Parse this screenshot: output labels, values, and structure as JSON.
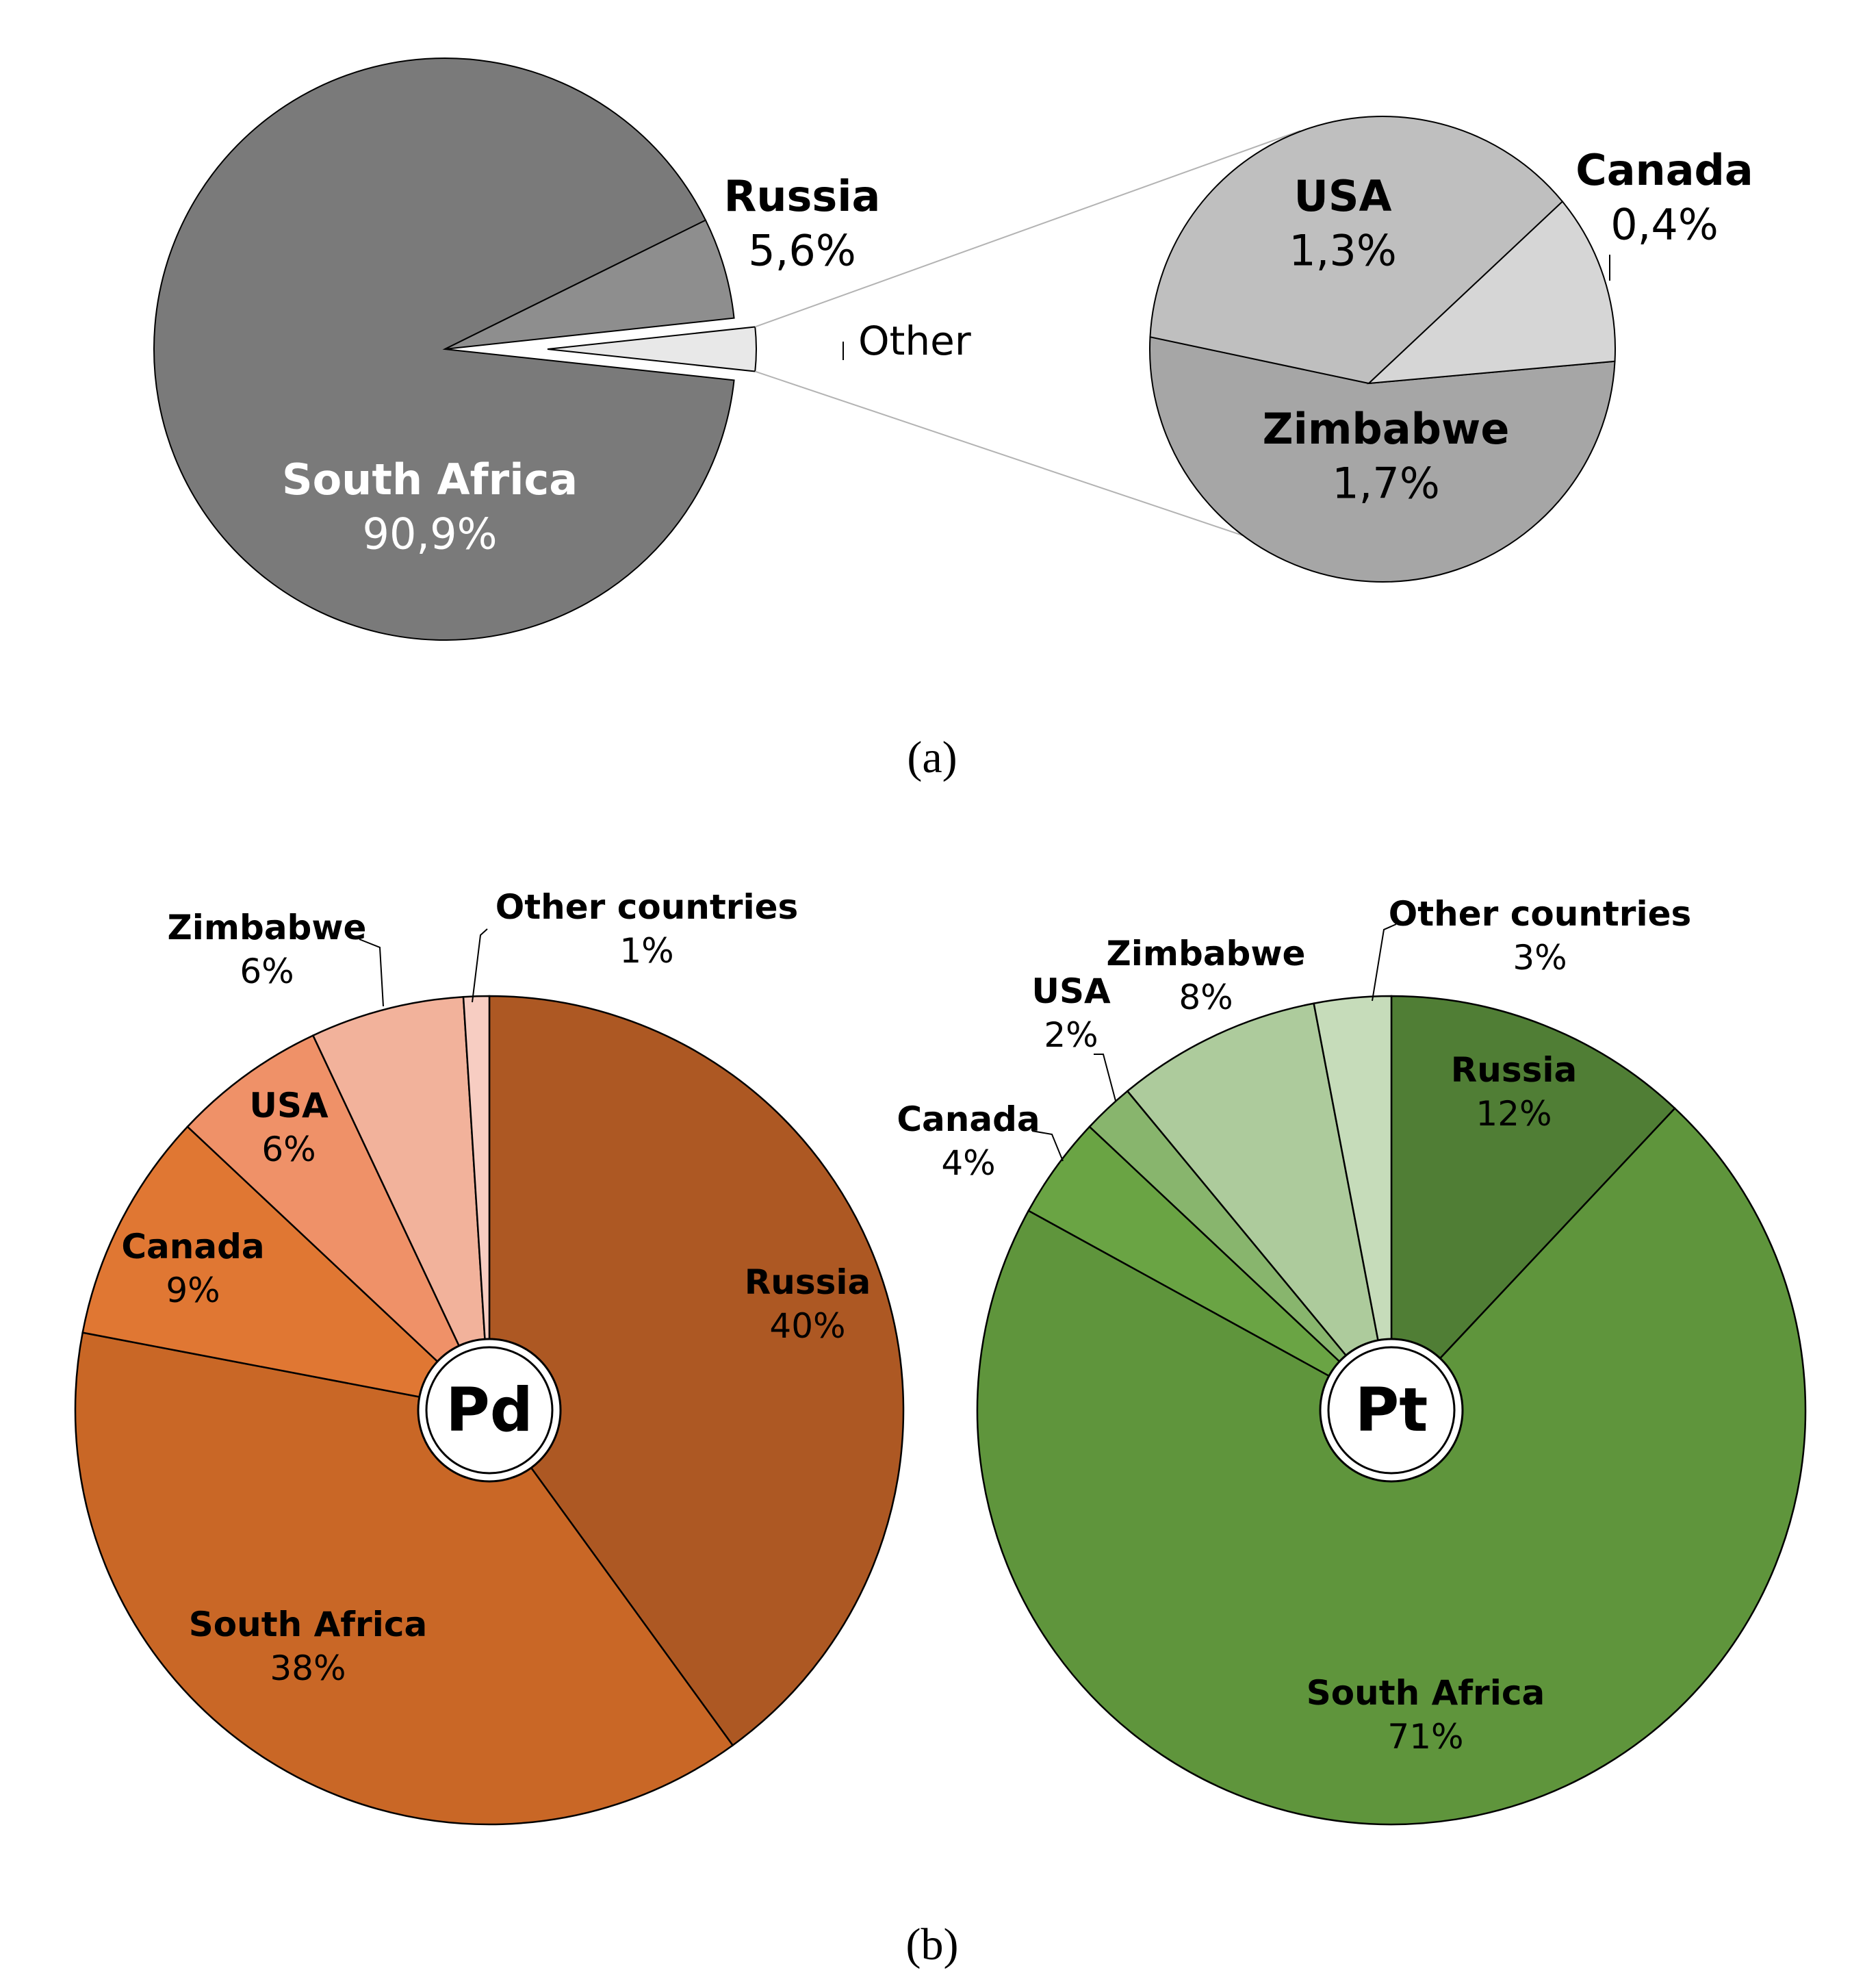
{
  "chart_data": [
    {
      "type": "pie",
      "panel": "(a)",
      "slices": [
        {
          "label": "South Africa",
          "value": 90.9,
          "value_text": "90,9%",
          "color": "#7a7a7a"
        },
        {
          "label": "Russia",
          "value": 5.6,
          "value_text": "5,6%",
          "color": "#8e8e8e"
        },
        {
          "label": "Other",
          "value": 3.4,
          "value_text": "",
          "color": "#e8e8e8"
        }
      ],
      "breakout": {
        "of": "Other",
        "slices": [
          {
            "label": "USA",
            "value": 1.3,
            "value_text": "1,3%",
            "color": "#bfbfbf"
          },
          {
            "label": "Canada",
            "value": 0.4,
            "value_text": "0,4%",
            "color": "#d6d6d6"
          },
          {
            "label": "Zimbabwe",
            "value": 1.7,
            "value_text": "1,7%",
            "color": "#a6a6a6"
          }
        ]
      }
    },
    {
      "type": "pie",
      "panel": "(b)",
      "center_label": "Pd",
      "slices": [
        {
          "label": "Russia",
          "value": 40,
          "value_text": "40%",
          "color": "#ad5823"
        },
        {
          "label": "South Africa",
          "value": 38,
          "value_text": "38%",
          "color": "#c96726"
        },
        {
          "label": "Canada",
          "value": 9,
          "value_text": "9%",
          "color": "#e07733"
        },
        {
          "label": "USA",
          "value": 6,
          "value_text": "6%",
          "color": "#ef9168"
        },
        {
          "label": "Zimbabwe",
          "value": 6,
          "value_text": "6%",
          "color": "#f2b29b"
        },
        {
          "label": "Other countries",
          "value": 1,
          "value_text": "1%",
          "color": "#f7cdc2"
        }
      ]
    },
    {
      "type": "pie",
      "panel": "(b)",
      "center_label": "Pt",
      "slices": [
        {
          "label": "Russia",
          "value": 12,
          "value_text": "12%",
          "color": "#507e35"
        },
        {
          "label": "South Africa",
          "value": 71,
          "value_text": "71%",
          "color": "#5f953c"
        },
        {
          "label": "Canada",
          "value": 4,
          "value_text": "4%",
          "color": "#6aa444"
        },
        {
          "label": "USA",
          "value": 2,
          "value_text": "2%",
          "color": "#88b56d"
        },
        {
          "label": "Zimbabwe",
          "value": 8,
          "value_text": "8%",
          "color": "#adcb9c"
        },
        {
          "label": "Other countries",
          "value": 3,
          "value_text": "3%",
          "color": "#c6dcba"
        }
      ]
    }
  ],
  "captions": {
    "a": "(a)",
    "b": "(b)"
  },
  "colors": {
    "outline": "#000000",
    "connector": "#b3b3b3"
  }
}
